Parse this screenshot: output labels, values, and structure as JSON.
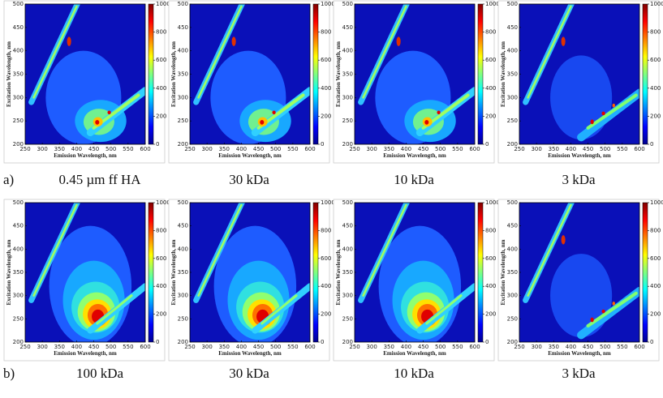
{
  "chart_data": [
    {
      "type": "contour",
      "panel_label": "a)",
      "caption": "0.45 µm ff HA",
      "xlabel": "Emission Wavelength, nm",
      "ylabel": "Excitation Wavelength, nm",
      "xlim": [
        250,
        600
      ],
      "xticks": [
        250,
        300,
        350,
        400,
        450,
        500,
        550,
        600
      ],
      "ylim": [
        200,
        500
      ],
      "yticks": [
        200,
        250,
        300,
        350,
        400,
        450,
        500
      ],
      "colorbar_lim": [
        0,
        1000
      ],
      "colorbar_ticks": [
        0,
        200,
        400,
        600,
        800,
        1000
      ],
      "colormap": "jet"
    },
    {
      "type": "contour",
      "caption": "30 kDa",
      "xlabel": "Emission Wavelength, nm",
      "ylabel": "Excitation Wavelength, nm",
      "xlim": [
        250,
        600
      ],
      "xticks": [
        250,
        300,
        350,
        400,
        450,
        500,
        550,
        600
      ],
      "ylim": [
        200,
        500
      ],
      "yticks": [
        200,
        250,
        300,
        350,
        400,
        450,
        500
      ],
      "colorbar_lim": [
        0,
        1000
      ],
      "colorbar_ticks": [
        0,
        200,
        400,
        600,
        800,
        1000
      ],
      "colormap": "jet"
    },
    {
      "type": "contour",
      "caption": "10 kDa",
      "xlabel": "Emission Wavelength, nm",
      "ylabel": "Excitation Wavelength, nm",
      "xlim": [
        250,
        600
      ],
      "xticks": [
        250,
        300,
        350,
        400,
        450,
        500,
        550,
        600
      ],
      "ylim": [
        200,
        500
      ],
      "yticks": [
        200,
        250,
        300,
        350,
        400,
        450,
        500
      ],
      "colorbar_lim": [
        0,
        1000
      ],
      "colorbar_ticks": [
        0,
        200,
        400,
        600,
        800,
        1000
      ],
      "colormap": "jet"
    },
    {
      "type": "contour",
      "caption": "3 kDa",
      "xlabel": "Emission Wavelength, nm",
      "ylabel": "Excitation Wavelength, nm",
      "xlim": [
        250,
        600
      ],
      "xticks": [
        250,
        300,
        350,
        400,
        450,
        500,
        550,
        600
      ],
      "ylim": [
        200,
        500
      ],
      "yticks": [
        200,
        250,
        300,
        350,
        400,
        450,
        500
      ],
      "colorbar_lim": [
        0,
        1000
      ],
      "colorbar_ticks": [
        0,
        200,
        400,
        600,
        800,
        1000
      ],
      "colormap": "jet"
    },
    {
      "type": "contour",
      "panel_label": "b)",
      "caption": "100 kDa",
      "xlabel": "Emission Wavelength, nm",
      "ylabel": "Excitation Wavelength, nm",
      "xlim": [
        250,
        600
      ],
      "xticks": [
        250,
        300,
        350,
        400,
        450,
        500,
        550,
        600
      ],
      "ylim": [
        200,
        500
      ],
      "yticks": [
        200,
        250,
        300,
        350,
        400,
        450,
        500
      ],
      "colorbar_lim": [
        0,
        1000
      ],
      "colorbar_ticks": [
        0,
        200,
        400,
        600,
        800,
        1000
      ],
      "colormap": "jet"
    },
    {
      "type": "contour",
      "caption": "30 kDa",
      "xlabel": "Emission Wavelength, nm",
      "ylabel": "Excitation Wavelength, nm",
      "xlim": [
        250,
        600
      ],
      "xticks": [
        250,
        300,
        350,
        400,
        450,
        500,
        550,
        600
      ],
      "ylim": [
        200,
        500
      ],
      "yticks": [
        200,
        250,
        300,
        350,
        400,
        450,
        500
      ],
      "colorbar_lim": [
        0,
        1000
      ],
      "colorbar_ticks": [
        0,
        200,
        400,
        600,
        800,
        1000
      ],
      "colormap": "jet"
    },
    {
      "type": "contour",
      "caption": "10 kDa",
      "xlabel": "Emission Wavelength, nm",
      "ylabel": "Excitation Wavelength, nm",
      "xlim": [
        250,
        600
      ],
      "xticks": [
        250,
        300,
        350,
        400,
        450,
        500,
        550,
        600
      ],
      "ylim": [
        200,
        500
      ],
      "yticks": [
        200,
        250,
        300,
        350,
        400,
        450,
        500
      ],
      "colorbar_lim": [
        0,
        1000
      ],
      "colorbar_ticks": [
        0,
        200,
        400,
        600,
        800,
        1000
      ],
      "colormap": "jet"
    },
    {
      "type": "contour",
      "caption": "3 kDa",
      "xlabel": "Emission Wavelength, nm",
      "ylabel": "Excitation Wavelength, nm",
      "xlim": [
        250,
        600
      ],
      "xticks": [
        250,
        300,
        350,
        400,
        450,
        500,
        550,
        600
      ],
      "ylim": [
        200,
        500
      ],
      "yticks": [
        200,
        250,
        300,
        350,
        400,
        450,
        500
      ],
      "colorbar_lim": [
        0,
        1000
      ],
      "colorbar_ticks": [
        0,
        200,
        400,
        600,
        800,
        1000
      ],
      "colormap": "jet"
    }
  ]
}
